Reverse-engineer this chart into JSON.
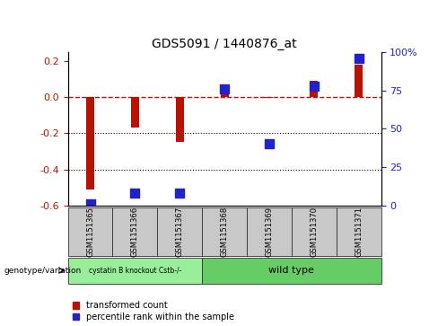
{
  "title": "GDS5091 / 1440876_at",
  "categories": [
    "GSM1151365",
    "GSM1151366",
    "GSM1151367",
    "GSM1151368",
    "GSM1151369",
    "GSM1151370",
    "GSM1151371"
  ],
  "red_values": [
    -0.51,
    -0.17,
    -0.25,
    0.025,
    -0.005,
    0.09,
    0.18
  ],
  "blue_values_pct": [
    1,
    8,
    8,
    76,
    40,
    78,
    96
  ],
  "ylim_left": [
    -0.6,
    0.25
  ],
  "ylim_right": [
    0,
    100
  ],
  "yticks_left": [
    -0.6,
    -0.4,
    -0.2,
    0.0,
    0.2
  ],
  "yticks_right": [
    0,
    25,
    50,
    75,
    100
  ],
  "ytick_labels_right": [
    "0",
    "25",
    "50",
    "75",
    "100%"
  ],
  "hline_y": 0.0,
  "dotted_lines": [
    -0.2,
    -0.4
  ],
  "group1_label": "cystatin B knockout Cstb-/-",
  "group2_label": "wild type",
  "group1_indices": [
    0,
    1,
    2
  ],
  "group2_indices": [
    3,
    4,
    5,
    6
  ],
  "genotype_label": "genotype/variation",
  "legend_red": "transformed count",
  "legend_blue": "percentile rank within the sample",
  "bar_color_red": "#BB1100",
  "bar_color_blue": "#2222CC",
  "group1_color": "#99EE99",
  "group2_color": "#66CC66",
  "bar_width": 0.18,
  "marker_size": 60,
  "background_color": "#FFFFFF"
}
